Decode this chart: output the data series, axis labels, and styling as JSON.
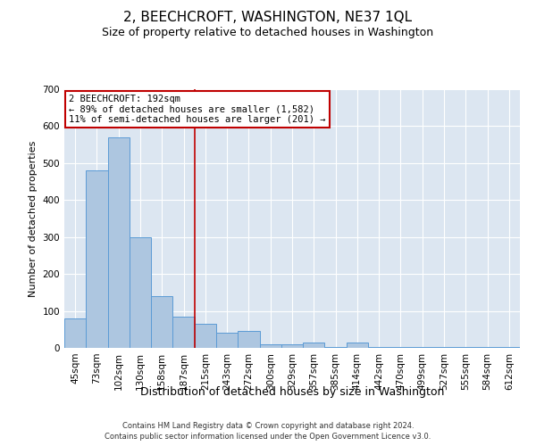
{
  "title": "2, BEECHCROFT, WASHINGTON, NE37 1QL",
  "subtitle": "Size of property relative to detached houses in Washington",
  "xlabel": "Distribution of detached houses by size in Washington",
  "ylabel": "Number of detached properties",
  "footer1": "Contains HM Land Registry data © Crown copyright and database right 2024.",
  "footer2": "Contains public sector information licensed under the Open Government Licence v3.0.",
  "annotation_line1": "2 BEECHCROFT: 192sqm",
  "annotation_line2": "← 89% of detached houses are smaller (1,582)",
  "annotation_line3": "11% of semi-detached houses are larger (201) →",
  "bar_color": "#adc6e0",
  "bar_edge_color": "#5b9bd5",
  "vline_color": "#c00000",
  "annotation_box_color": "#ffffff",
  "annotation_box_edge": "#c00000",
  "background_color": "#ffffff",
  "plot_bg_color": "#dce6f1",
  "categories": [
    "45sqm",
    "73sqm",
    "102sqm",
    "130sqm",
    "158sqm",
    "187sqm",
    "215sqm",
    "243sqm",
    "272sqm",
    "300sqm",
    "329sqm",
    "357sqm",
    "385sqm",
    "414sqm",
    "442sqm",
    "470sqm",
    "499sqm",
    "527sqm",
    "555sqm",
    "584sqm",
    "612sqm"
  ],
  "values": [
    80,
    480,
    570,
    300,
    140,
    85,
    65,
    40,
    45,
    10,
    10,
    15,
    2,
    15,
    2,
    2,
    2,
    2,
    2,
    2,
    2
  ],
  "ylim": [
    0,
    700
  ],
  "yticks": [
    0,
    100,
    200,
    300,
    400,
    500,
    600,
    700
  ],
  "vline_x": 5.5,
  "title_fontsize": 11,
  "subtitle_fontsize": 9,
  "tick_fontsize": 7.5,
  "ylabel_fontsize": 8,
  "xlabel_fontsize": 9,
  "annot_fontsize": 7.5,
  "footer_fontsize": 6
}
